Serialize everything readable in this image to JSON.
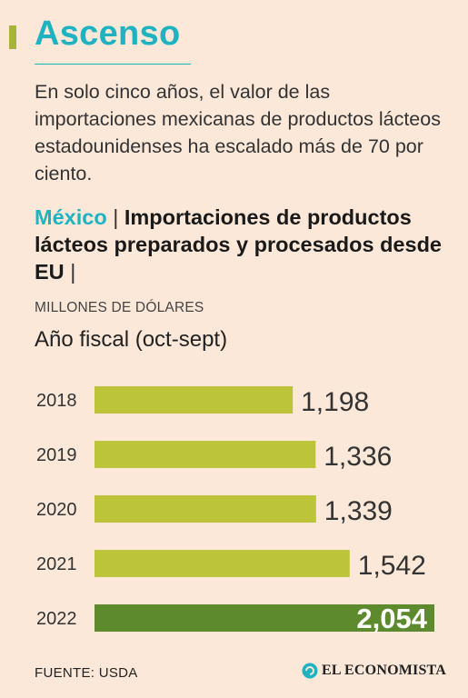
{
  "header": {
    "title": "Ascenso",
    "subtitle": "En solo cinco años, el valor de las importaciones mexicanas de productos lácteos estadounidenses ha escalado más de 70 por ciento."
  },
  "chart_heading": {
    "country": "México",
    "separator": "|",
    "title": "Importaciones de productos lácteos preparados y procesados desde EU",
    "trailing_separator": "|",
    "units": "MILLONES DE DÓLARES",
    "period": "Año fiscal (oct-sept)"
  },
  "chart_data": {
    "type": "bar",
    "orientation": "horizontal",
    "categories": [
      "2018",
      "2019",
      "2020",
      "2021",
      "2022"
    ],
    "values": [
      1198,
      1336,
      1339,
      1542,
      2054
    ],
    "value_labels": [
      "1,198",
      "1,336",
      "1,339",
      "1,542",
      "2,054"
    ],
    "highlight_category": "2022",
    "colors": {
      "bar": "#bcc43a",
      "highlight": "#5e8a2e",
      "highlight_label": "#ffffff"
    },
    "grid": false,
    "legend": "none"
  },
  "footer": {
    "source": "FUENTE: USDA",
    "logo_text": "EL ECONOMISTA",
    "logo_icon": "el-economista-logo-icon"
  }
}
